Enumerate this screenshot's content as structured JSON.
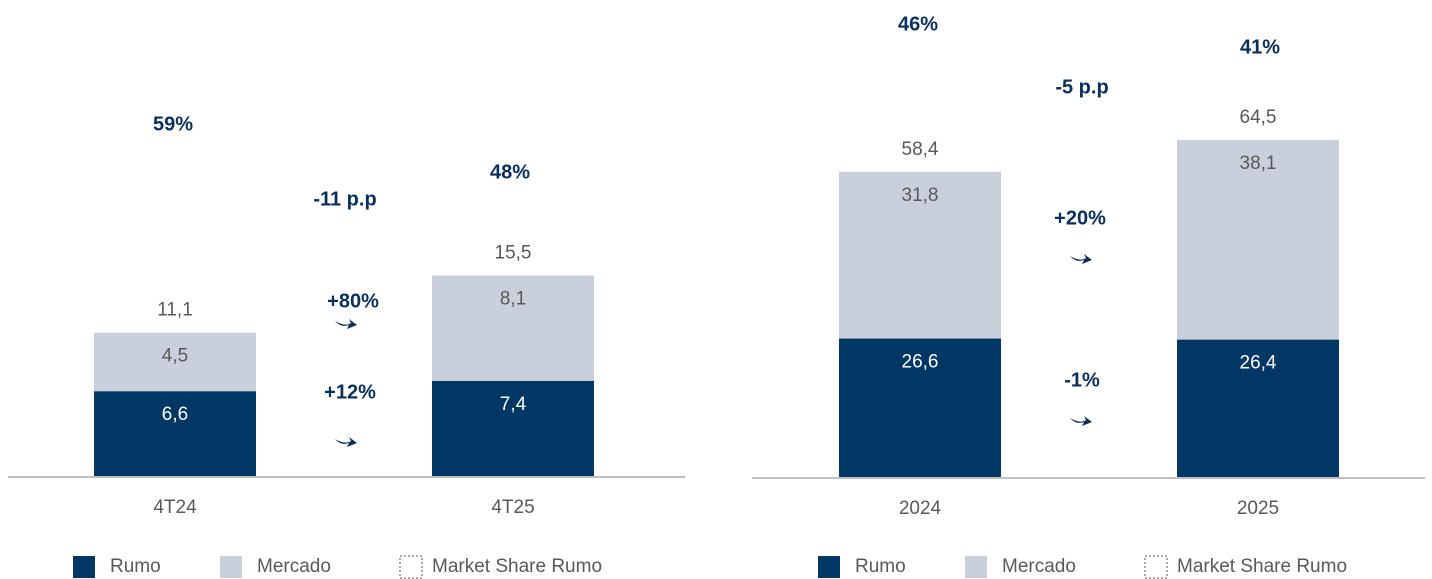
{
  "chart_data": [
    {
      "type": "bar",
      "stacked": true,
      "categories": [
        "4T24",
        "4T25"
      ],
      "series": [
        {
          "name": "Rumo",
          "color": "#003764",
          "values": [
            6.6,
            7.4
          ],
          "value_labels": [
            "6,6",
            "7,4"
          ]
        },
        {
          "name": "Mercado",
          "color": "#c9d0dc",
          "values": [
            4.5,
            8.1
          ],
          "value_labels": [
            "4,5",
            "8,1"
          ]
        }
      ],
      "total_labels": [
        "11,1",
        "15,5"
      ],
      "market_share": {
        "name": "Market Share Rumo",
        "values": [
          59,
          48
        ],
        "value_labels": [
          "59%",
          "48%"
        ]
      },
      "annotations": [
        "-11 p.p",
        "+80%",
        "+12%"
      ],
      "ylim": [
        0,
        16
      ]
    },
    {
      "type": "bar",
      "stacked": true,
      "categories": [
        "2024",
        "2025"
      ],
      "series": [
        {
          "name": "Rumo",
          "color": "#003764",
          "values": [
            26.6,
            26.4
          ],
          "value_labels": [
            "26,6",
            "26,4"
          ]
        },
        {
          "name": "Mercado",
          "color": "#c9d0dc",
          "values": [
            31.8,
            38.1
          ],
          "value_labels": [
            "31,8",
            "38,1"
          ]
        }
      ],
      "total_labels": [
        "58,4",
        "64,5"
      ],
      "market_share": {
        "name": "Market Share Rumo",
        "values": [
          46,
          41
        ],
        "value_labels": [
          "46%",
          "41%"
        ]
      },
      "annotations": [
        "-5 p.p",
        "+20%",
        "-1%"
      ],
      "ylim": [
        0,
        70
      ]
    }
  ]
}
